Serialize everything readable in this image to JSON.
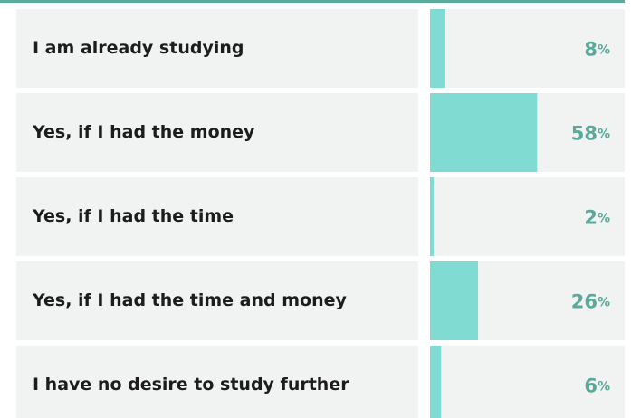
{
  "chart_data": {
    "type": "bar",
    "orientation": "horizontal",
    "categories": [
      "I am already studying",
      "Yes, if I had the money",
      "Yes, if I had the time",
      "Yes, if I had the time and money",
      "I have no desire to study further"
    ],
    "values": [
      8,
      58,
      2,
      26,
      6
    ],
    "value_labels": [
      "8%",
      "58%",
      "2%",
      "26%",
      "6%"
    ],
    "color": "#80dcd3"
  }
}
